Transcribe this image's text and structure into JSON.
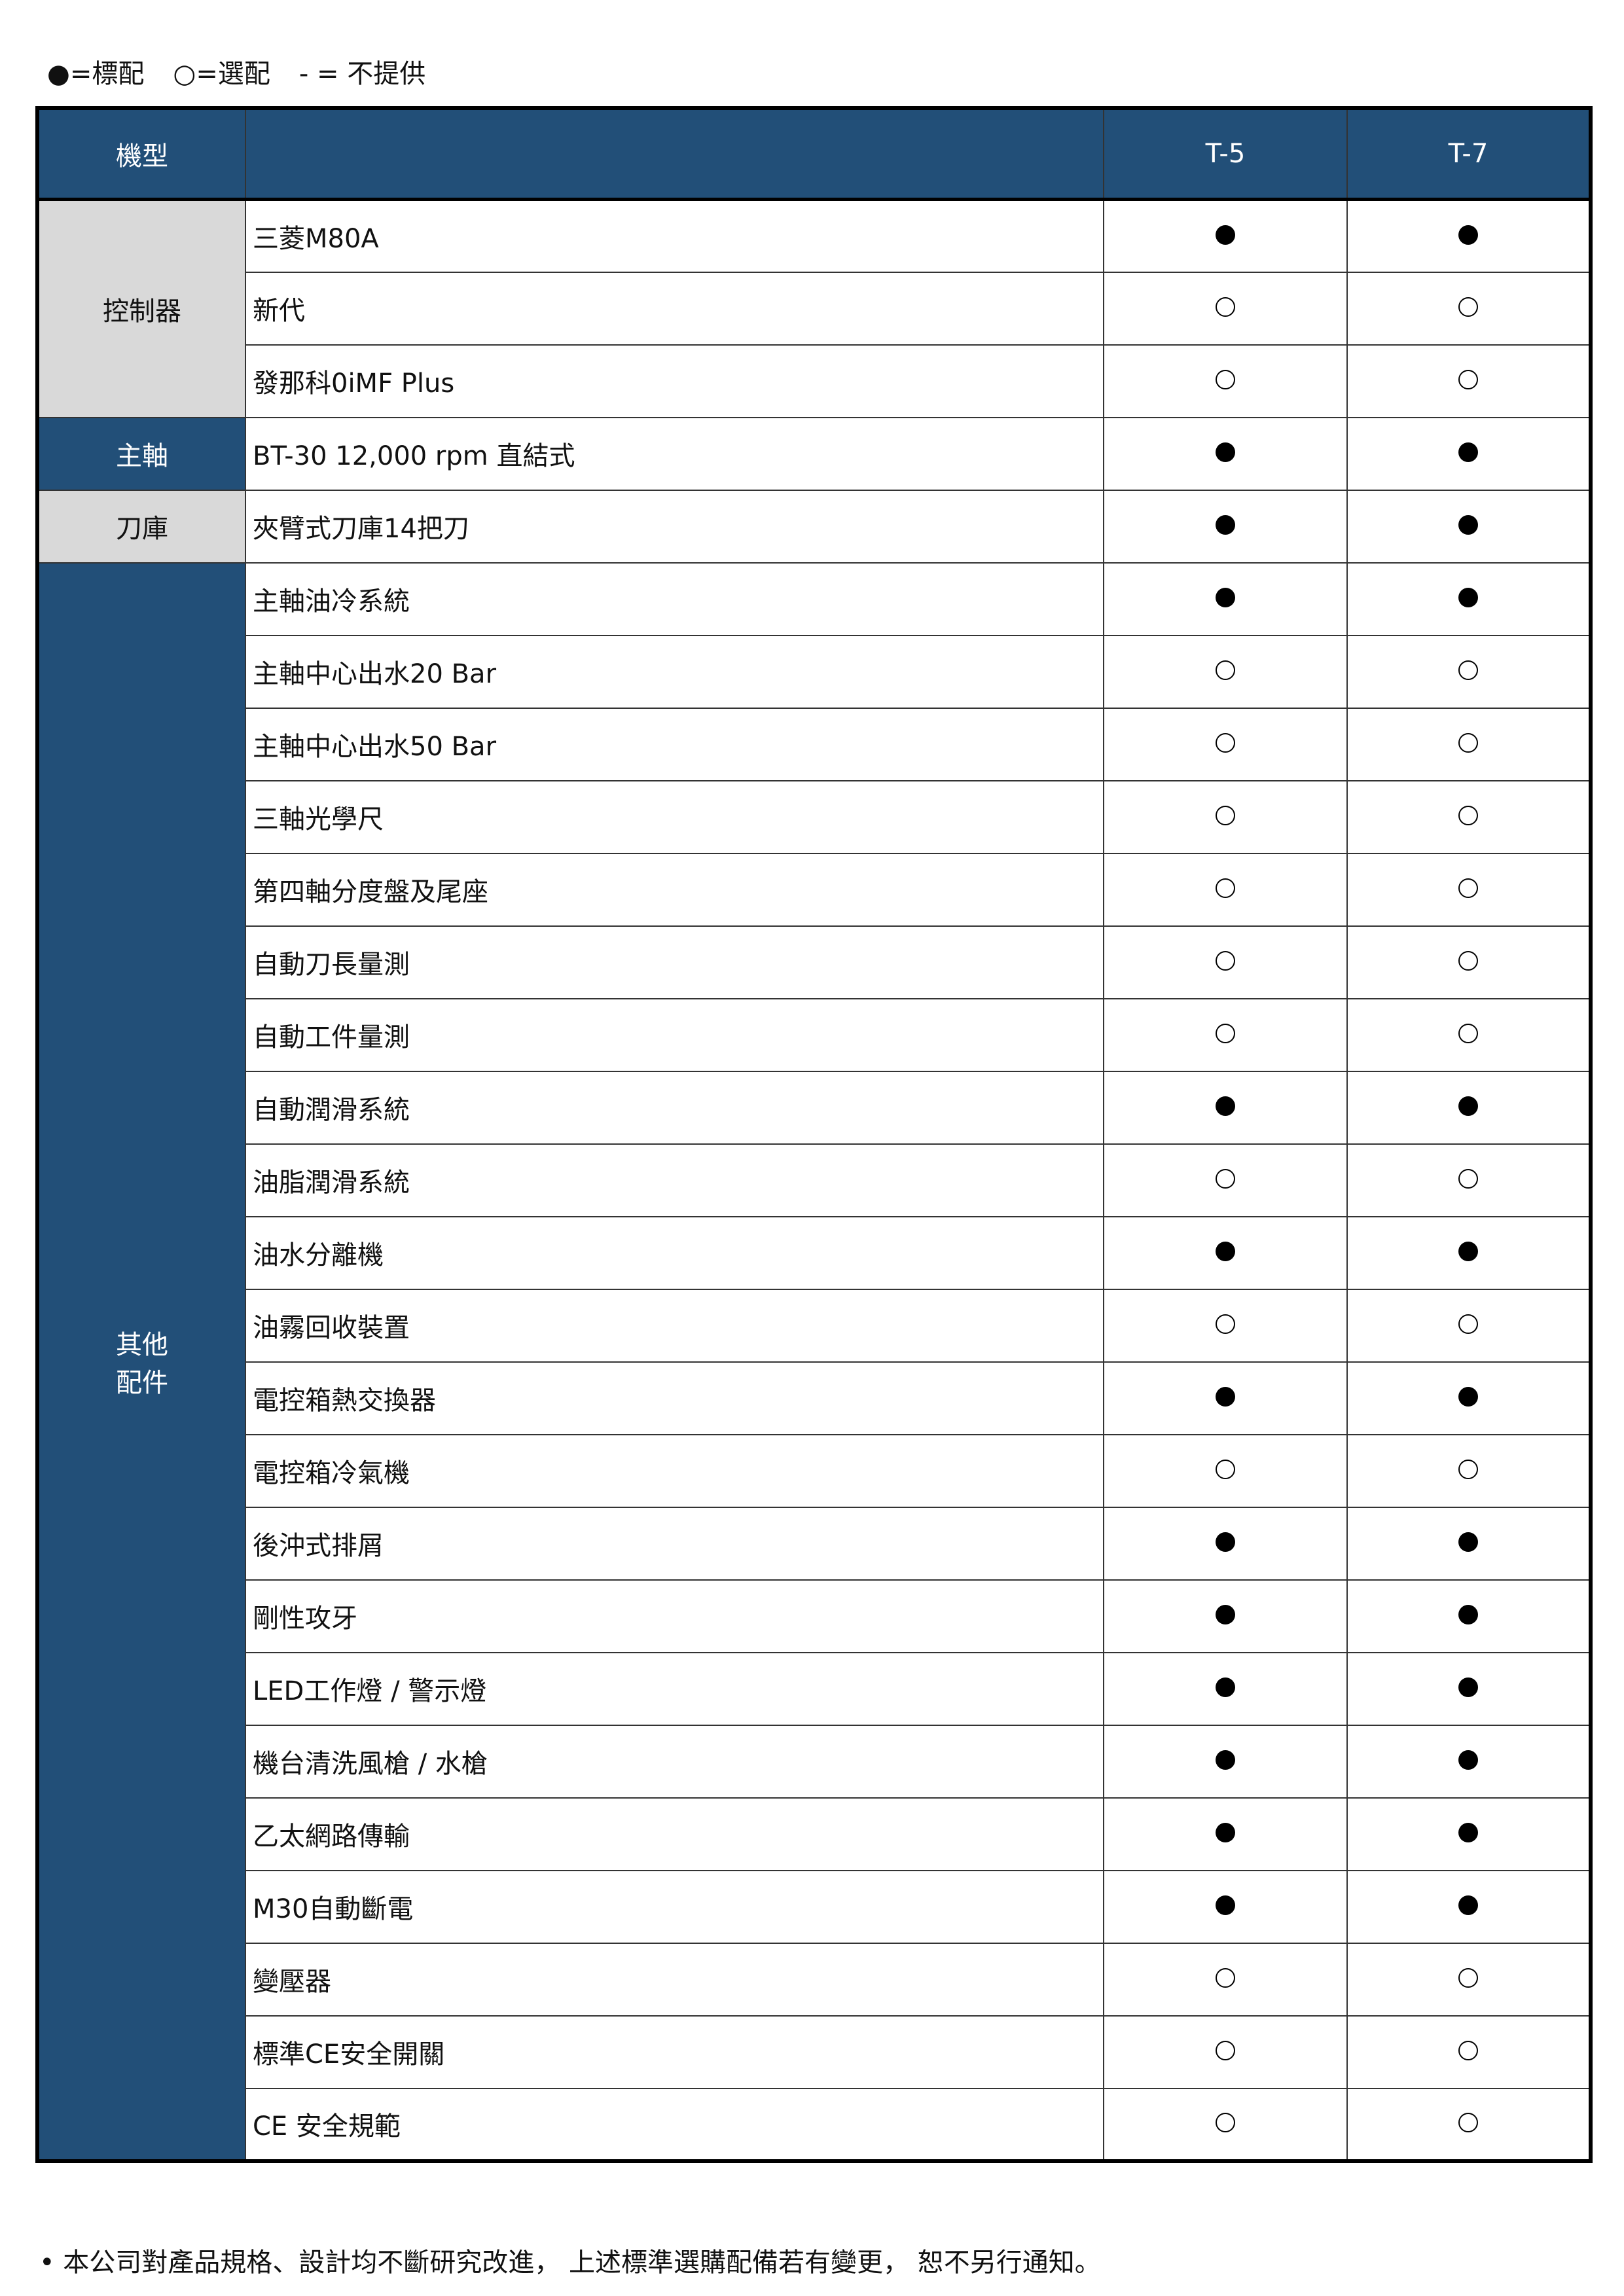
{
  "legend": {
    "standard": "●=標配",
    "optional": "○=選配",
    "none": "- = 不提供"
  },
  "header": {
    "model_label": "機型",
    "item_label": "",
    "models": [
      "T-5",
      "T-7"
    ]
  },
  "symbols": {
    "standard": "●",
    "optional": "○"
  },
  "colors": {
    "header_blue": "#224f78",
    "category_gray": "#d9d9d9"
  },
  "groups": [
    {
      "category": "控制器",
      "style": "gray",
      "items": [
        {
          "name": "三菱M80A",
          "values": [
            "●",
            "●"
          ]
        },
        {
          "name": "新代",
          "values": [
            "○",
            "○"
          ]
        },
        {
          "name": "發那科0iMF Plus",
          "values": [
            "○",
            "○"
          ]
        }
      ]
    },
    {
      "category": "主軸",
      "style": "blue",
      "items": [
        {
          "name": "BT-30 12,000 rpm 直結式",
          "values": [
            "●",
            "●"
          ]
        }
      ]
    },
    {
      "category": "刀庫",
      "style": "gray",
      "items": [
        {
          "name": "夾臂式刀庫14把刀",
          "values": [
            "●",
            "●"
          ]
        }
      ]
    },
    {
      "category": "其他\n配件",
      "style": "blue",
      "items": [
        {
          "name": "主軸油冷系統",
          "values": [
            "●",
            "●"
          ]
        },
        {
          "name": "主軸中心出水20 Bar",
          "values": [
            "○",
            "○"
          ]
        },
        {
          "name": "主軸中心出水50 Bar",
          "values": [
            "○",
            "○"
          ]
        },
        {
          "name": "三軸光學尺",
          "values": [
            "○",
            "○"
          ]
        },
        {
          "name": "第四軸分度盤及尾座",
          "values": [
            "○",
            "○"
          ]
        },
        {
          "name": "自動刀長量測",
          "values": [
            "○",
            "○"
          ]
        },
        {
          "name": "自動工件量測",
          "values": [
            "○",
            "○"
          ]
        },
        {
          "name": "自動潤滑系統",
          "values": [
            "●",
            "●"
          ]
        },
        {
          "name": "油脂潤滑系統",
          "values": [
            "○",
            "○"
          ]
        },
        {
          "name": "油水分離機",
          "values": [
            "●",
            "●"
          ]
        },
        {
          "name": "油霧回收裝置",
          "values": [
            "○",
            "○"
          ]
        },
        {
          "name": "電控箱熱交換器",
          "values": [
            "●",
            "●"
          ]
        },
        {
          "name": "電控箱冷氣機",
          "values": [
            "○",
            "○"
          ]
        },
        {
          "name": "後沖式排屑",
          "values": [
            "●",
            "●"
          ]
        },
        {
          "name": "剛性攻牙",
          "values": [
            "●",
            "●"
          ]
        },
        {
          "name": "LED工作燈 / 警示燈",
          "values": [
            "●",
            "●"
          ]
        },
        {
          "name": "機台清洗風槍 / 水槍",
          "values": [
            "●",
            "●"
          ]
        },
        {
          "name": "乙太網路傳輸",
          "values": [
            "●",
            "●"
          ]
        },
        {
          "name": "M30自動斷電",
          "values": [
            "●",
            "●"
          ]
        },
        {
          "name": "變壓器",
          "values": [
            "○",
            "○"
          ]
        },
        {
          "name": "標準CE安全開關",
          "values": [
            "○",
            "○"
          ]
        },
        {
          "name": "CE 安全規範",
          "values": [
            "○",
            "○"
          ]
        }
      ]
    }
  ],
  "footer": "• 本公司對產品規格、設計均不斷研究改進， 上述標準選購配備若有變更， 恕不另行通知。"
}
